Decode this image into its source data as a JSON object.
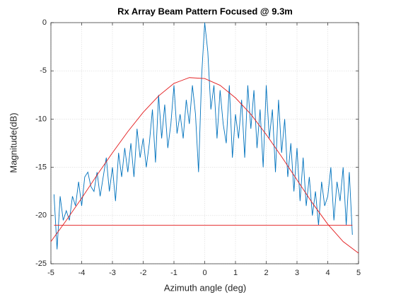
{
  "chart_data": {
    "type": "line",
    "title": "Rx Array Beam Pattern Focused @ 9.3m",
    "xlabel": "Azimuth angle (deg)",
    "ylabel": "Magnitude(dB)",
    "xlim": [
      -5,
      5
    ],
    "xticks": [
      -5,
      -4,
      -3,
      -2,
      -1,
      0,
      1,
      2,
      3,
      4,
      5
    ],
    "ylim": [
      -25,
      0
    ],
    "yticks": [
      0,
      -5,
      -10,
      -15,
      -20,
      -25
    ],
    "grid": true,
    "series": [
      {
        "color": "#0072bd",
        "x": [
          -4.9,
          -4.8,
          -4.7,
          -4.6,
          -4.5,
          -4.4,
          -4.3,
          -4.2,
          -4.1,
          -4.0,
          -3.9,
          -3.8,
          -3.7,
          -3.6,
          -3.5,
          -3.4,
          -3.3,
          -3.2,
          -3.1,
          -3.0,
          -2.9,
          -2.8,
          -2.7,
          -2.6,
          -2.5,
          -2.4,
          -2.3,
          -2.2,
          -2.1,
          -2.0,
          -1.9,
          -1.8,
          -1.7,
          -1.6,
          -1.5,
          -1.4,
          -1.3,
          -1.2,
          -1.1,
          -1.0,
          -0.9,
          -0.8,
          -0.7,
          -0.6,
          -0.5,
          -0.4,
          -0.3,
          -0.2,
          -0.1,
          0.0,
          0.1,
          0.2,
          0.3,
          0.4,
          0.5,
          0.6,
          0.7,
          0.8,
          0.9,
          1.0,
          1.1,
          1.2,
          1.3,
          1.4,
          1.5,
          1.6,
          1.7,
          1.8,
          1.9,
          2.0,
          2.1,
          2.2,
          2.3,
          2.4,
          2.5,
          2.6,
          2.7,
          2.8,
          2.9,
          3.0,
          3.1,
          3.2,
          3.3,
          3.4,
          3.5,
          3.6,
          3.7,
          3.8,
          3.9,
          4.0,
          4.1,
          4.2,
          4.3,
          4.4,
          4.5,
          4.6,
          4.7,
          4.8
        ],
        "values": [
          -17.8,
          -23.5,
          -18,
          -20.5,
          -19.5,
          -20.5,
          -18,
          -19,
          -16.5,
          -19,
          -16,
          -15.5,
          -17,
          -17.5,
          -15.5,
          -18,
          -16,
          -14,
          -17.5,
          -15,
          -18.5,
          -13.5,
          -16,
          -13,
          -15.5,
          -12.5,
          -16,
          -11,
          -14,
          -12,
          -15,
          -12.5,
          -9,
          -14.5,
          -7.5,
          -12,
          -8.5,
          -13,
          -10.5,
          -6.5,
          -11.5,
          -9.5,
          -12,
          -8,
          -10.5,
          -6.5,
          -9.5,
          -15.5,
          -5.5,
          0,
          -3,
          -9,
          -6.5,
          -12,
          -7,
          -10.5,
          -12.5,
          -6.5,
          -14,
          -9.5,
          -12,
          -8,
          -14,
          -6.5,
          -11,
          -7,
          -13,
          -9,
          -15,
          -6.5,
          -12,
          -9,
          -15.5,
          -8,
          -13.5,
          -10,
          -16,
          -12.5,
          -17.5,
          -13,
          -18.5,
          -14,
          -19,
          -16,
          -20,
          -17.5,
          -21,
          -16.5,
          -19,
          -18,
          -15,
          -20.5,
          -16.5,
          -18.5,
          -15,
          -21,
          -15.5,
          -22
        ]
      },
      {
        "color": "#e31a1c",
        "x": [
          -5,
          -4.5,
          -4,
          -3.5,
          -3,
          -2.5,
          -2,
          -1.5,
          -1,
          -0.5,
          0,
          0.5,
          1,
          1.5,
          2,
          2.5,
          3,
          3.5,
          4,
          4.5,
          5
        ],
        "values": [
          -22.7,
          -20.5,
          -18.2,
          -15.8,
          -13.5,
          -11.3,
          -9.3,
          -7.6,
          -6.3,
          -5.7,
          -5.8,
          -6.5,
          -7.8,
          -9.5,
          -11.6,
          -13.9,
          -16.3,
          -18.7,
          -20.9,
          -22.7,
          -23.9
        ]
      },
      {
        "color": "#e31a1c",
        "x": [
          -4.9,
          4.8
        ],
        "values": [
          -21,
          -21
        ]
      }
    ]
  }
}
